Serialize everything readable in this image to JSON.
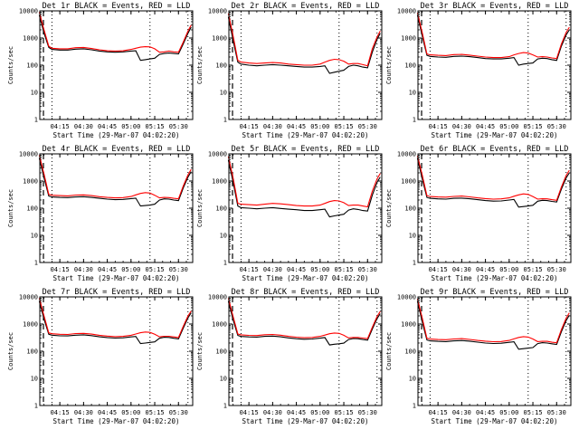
{
  "colors": {
    "events": "#000000",
    "lld": "#ff0000",
    "background": "#ffffff"
  },
  "chart_data": [
    {
      "type": "line",
      "title": "Det 1r BLACK = Events, RED = LLD",
      "xlabel": "Start Time (29-Mar-07 04:02:20)",
      "ylabel": "Counts/sec",
      "x_ticks": [
        "04:15",
        "04:30",
        "04:45",
        "05:00",
        "05:15",
        "05:30"
      ],
      "y_ticks": [
        "1",
        "10",
        "100",
        "1000",
        "10000"
      ],
      "ylim": [
        1,
        10000
      ],
      "yscale": "log",
      "x": [
        "04:02",
        "04:05",
        "04:08",
        "04:10",
        "04:15",
        "04:20",
        "04:25",
        "04:30",
        "04:35",
        "04:40",
        "04:45",
        "04:50",
        "04:55",
        "05:00",
        "05:03",
        "05:06",
        "05:09",
        "05:12",
        "05:15",
        "05:18",
        "05:21",
        "05:24",
        "05:27",
        "05:30",
        "05:33",
        "05:36",
        "05:38"
      ],
      "series": [
        {
          "name": "Events",
          "values": [
            7000,
            1500,
            450,
            380,
            360,
            360,
            390,
            400,
            370,
            330,
            310,
            300,
            310,
            330,
            340,
            150,
            160,
            170,
            180,
            250,
            270,
            280,
            270,
            260,
            600,
            1500,
            2500
          ]
        },
        {
          "name": "LLD",
          "values": [
            9000,
            2000,
            500,
            420,
            400,
            400,
            440,
            450,
            410,
            370,
            340,
            330,
            340,
            380,
            420,
            460,
            480,
            470,
            400,
            300,
            310,
            330,
            310,
            300,
            700,
            1800,
            3000
          ]
        }
      ]
    },
    {
      "type": "line",
      "title": "Det 2r BLACK = Events, RED = LLD",
      "xlabel": "Start Time (29-Mar-07 04:02:20)",
      "ylabel": "Counts/sec",
      "x_ticks": [
        "04:15",
        "04:30",
        "04:45",
        "05:00",
        "05:15",
        "05:30"
      ],
      "y_ticks": [
        "1",
        "10",
        "100",
        "1000",
        "10000"
      ],
      "ylim": [
        1,
        10000
      ],
      "yscale": "log",
      "x": [
        "04:02",
        "04:05",
        "04:08",
        "04:10",
        "04:15",
        "04:20",
        "04:25",
        "04:30",
        "04:35",
        "04:40",
        "04:45",
        "04:50",
        "04:55",
        "05:00",
        "05:03",
        "05:06",
        "05:09",
        "05:12",
        "05:15",
        "05:18",
        "05:21",
        "05:24",
        "05:27",
        "05:30",
        "05:33",
        "05:36",
        "05:38"
      ],
      "series": [
        {
          "name": "Events",
          "values": [
            6000,
            800,
            130,
            110,
            100,
            95,
            100,
            105,
            100,
            95,
            90,
            85,
            85,
            90,
            95,
            50,
            55,
            60,
            65,
            90,
            100,
            95,
            85,
            80,
            300,
            900,
            1500
          ]
        },
        {
          "name": "LLD",
          "values": [
            8000,
            1200,
            150,
            130,
            120,
            115,
            120,
            125,
            120,
            110,
            105,
            100,
            100,
            110,
            130,
            150,
            165,
            160,
            140,
            110,
            115,
            115,
            105,
            95,
            400,
            1100,
            1800
          ]
        }
      ]
    },
    {
      "type": "line",
      "title": "Det 3r BLACK = Events, RED = LLD",
      "xlabel": "Start Time (29-Mar-07 04:02:20)",
      "ylabel": "Counts/sec",
      "x_ticks": [
        "04:15",
        "04:30",
        "04:45",
        "05:00",
        "05:15",
        "05:30"
      ],
      "y_ticks": [
        "1",
        "10",
        "100",
        "1000",
        "10000"
      ],
      "ylim": [
        1,
        10000
      ],
      "yscale": "log",
      "x": [
        "04:02",
        "04:05",
        "04:08",
        "04:10",
        "04:15",
        "04:20",
        "04:25",
        "04:30",
        "04:35",
        "04:40",
        "04:45",
        "04:50",
        "04:55",
        "05:00",
        "05:03",
        "05:06",
        "05:09",
        "05:12",
        "05:15",
        "05:18",
        "05:21",
        "05:24",
        "05:27",
        "05:30",
        "05:33",
        "05:36",
        "05:38"
      ],
      "series": [
        {
          "name": "Events",
          "values": [
            7000,
            1200,
            230,
            210,
            200,
            195,
            210,
            215,
            205,
            190,
            175,
            170,
            170,
            180,
            190,
            100,
            110,
            115,
            120,
            170,
            180,
            175,
            160,
            150,
            500,
            1300,
            2000
          ]
        },
        {
          "name": "LLD",
          "values": [
            8500,
            1600,
            260,
            240,
            230,
            225,
            245,
            250,
            235,
            215,
            200,
            190,
            190,
            205,
            240,
            270,
            290,
            280,
            240,
            200,
            205,
            200,
            185,
            175,
            600,
            1600,
            2500
          ]
        }
      ]
    },
    {
      "type": "line",
      "title": "Det 4r BLACK = Events, RED = LLD",
      "xlabel": "Start Time (29-Mar-07 04:02:20)",
      "ylabel": "Counts/sec",
      "x_ticks": [
        "04:15",
        "04:30",
        "04:45",
        "05:00",
        "05:15",
        "05:30"
      ],
      "y_ticks": [
        "1",
        "10",
        "100",
        "1000",
        "10000"
      ],
      "ylim": [
        1,
        10000
      ],
      "yscale": "log",
      "x": [
        "04:02",
        "04:05",
        "04:08",
        "04:10",
        "04:15",
        "04:20",
        "04:25",
        "04:30",
        "04:35",
        "04:40",
        "04:45",
        "04:50",
        "04:55",
        "05:00",
        "05:03",
        "05:06",
        "05:09",
        "05:12",
        "05:15",
        "05:18",
        "05:21",
        "05:24",
        "05:27",
        "05:30",
        "05:33",
        "05:36",
        "05:38"
      ],
      "series": [
        {
          "name": "Events",
          "values": [
            7000,
            1300,
            280,
            260,
            250,
            245,
            260,
            265,
            250,
            230,
            215,
            205,
            210,
            225,
            235,
            120,
            125,
            130,
            140,
            200,
            220,
            215,
            200,
            190,
            550,
            1400,
            2200
          ]
        },
        {
          "name": "LLD",
          "values": [
            9000,
            1800,
            320,
            300,
            290,
            285,
            305,
            310,
            290,
            265,
            250,
            240,
            245,
            270,
            310,
            350,
            375,
            360,
            300,
            240,
            250,
            245,
            230,
            220,
            650,
            1700,
            2700
          ]
        }
      ]
    },
    {
      "type": "line",
      "title": "Det 5r BLACK = Events, RED = LLD",
      "xlabel": "Start Time (29-Mar-07 04:02:20)",
      "ylabel": "Counts/sec",
      "x_ticks": [
        "04:15",
        "04:30",
        "04:45",
        "05:00",
        "05:15",
        "05:30"
      ],
      "y_ticks": [
        "1",
        "10",
        "100",
        "1000",
        "10000"
      ],
      "ylim": [
        1,
        10000
      ],
      "yscale": "log",
      "x": [
        "04:02",
        "04:05",
        "04:08",
        "04:10",
        "04:15",
        "04:20",
        "04:25",
        "04:30",
        "04:35",
        "04:40",
        "04:45",
        "04:50",
        "04:55",
        "05:00",
        "05:03",
        "05:06",
        "05:09",
        "05:12",
        "05:15",
        "05:18",
        "05:21",
        "05:24",
        "05:27",
        "05:30",
        "05:33",
        "05:36",
        "05:38"
      ],
      "series": [
        {
          "name": "Events",
          "values": [
            6000,
            900,
            120,
            105,
            100,
            95,
            100,
            105,
            98,
            92,
            88,
            82,
            82,
            88,
            92,
            48,
            52,
            56,
            60,
            85,
            95,
            90,
            82,
            78,
            300,
            900,
            1400
          ]
        },
        {
          "name": "LLD",
          "values": [
            8000,
            1300,
            150,
            140,
            135,
            130,
            140,
            150,
            145,
            135,
            125,
            120,
            120,
            130,
            150,
            175,
            190,
            185,
            160,
            125,
            130,
            130,
            120,
            112,
            420,
            1200,
            1900
          ]
        }
      ]
    },
    {
      "type": "line",
      "title": "Det 6r BLACK = Events, RED = LLD",
      "xlabel": "Start Time (29-Mar-07 04:02:20)",
      "ylabel": "Counts/sec",
      "x_ticks": [
        "04:15",
        "04:30",
        "04:45",
        "05:00",
        "05:15",
        "05:30"
      ],
      "y_ticks": [
        "1",
        "10",
        "100",
        "1000",
        "10000"
      ],
      "ylim": [
        1,
        10000
      ],
      "yscale": "log",
      "x": [
        "04:02",
        "04:05",
        "04:08",
        "04:10",
        "04:15",
        "04:20",
        "04:25",
        "04:30",
        "04:35",
        "04:40",
        "04:45",
        "04:50",
        "04:55",
        "05:00",
        "05:03",
        "05:06",
        "05:09",
        "05:12",
        "05:15",
        "05:18",
        "05:21",
        "05:24",
        "05:27",
        "05:30",
        "05:33",
        "05:36",
        "05:38"
      ],
      "series": [
        {
          "name": "Events",
          "values": [
            7000,
            1200,
            250,
            230,
            220,
            215,
            230,
            235,
            222,
            205,
            190,
            182,
            185,
            200,
            210,
            110,
            115,
            120,
            128,
            180,
            195,
            190,
            178,
            168,
            500,
            1300,
            2000
          ]
        },
        {
          "name": "LLD",
          "values": [
            8500,
            1700,
            290,
            270,
            260,
            255,
            272,
            280,
            262,
            240,
            225,
            215,
            220,
            240,
            275,
            310,
            335,
            320,
            270,
            215,
            222,
            220,
            205,
            195,
            600,
            1600,
            2500
          ]
        }
      ]
    },
    {
      "type": "line",
      "title": "Det 7r BLACK = Events, RED = LLD",
      "xlabel": "Start Time (29-Mar-07 04:02:20)",
      "ylabel": "Counts/sec",
      "x_ticks": [
        "04:15",
        "04:30",
        "04:45",
        "05:00",
        "05:15",
        "05:30"
      ],
      "y_ticks": [
        "1",
        "10",
        "100",
        "1000",
        "10000"
      ],
      "ylim": [
        1,
        10000
      ],
      "yscale": "log",
      "x": [
        "04:02",
        "04:05",
        "04:08",
        "04:10",
        "04:15",
        "04:20",
        "04:25",
        "04:30",
        "04:35",
        "04:40",
        "04:45",
        "04:50",
        "04:55",
        "05:00",
        "05:03",
        "05:06",
        "05:09",
        "05:12",
        "05:15",
        "05:18",
        "05:21",
        "05:24",
        "05:27",
        "05:30",
        "05:33",
        "05:36",
        "05:38"
      ],
      "series": [
        {
          "name": "Events",
          "values": [
            7000,
            1500,
            420,
            390,
            370,
            365,
            390,
            400,
            375,
            340,
            318,
            305,
            312,
            335,
            350,
            190,
            200,
            210,
            220,
            300,
            325,
            320,
            300,
            285,
            700,
            1700,
            2600
          ]
        },
        {
          "name": "LLD",
          "values": [
            9000,
            2000,
            470,
            440,
            420,
            415,
            445,
            455,
            425,
            385,
            360,
            345,
            352,
            385,
            430,
            480,
            510,
            495,
            420,
            340,
            355,
            355,
            335,
            318,
            820,
            2000,
            3000
          ]
        }
      ]
    },
    {
      "type": "line",
      "title": "Det 8r BLACK = Events, RED = LLD",
      "xlabel": "Start Time (29-Mar-07 04:02:20)",
      "ylabel": "Counts/sec",
      "x_ticks": [
        "04:15",
        "04:30",
        "04:45",
        "05:00",
        "05:15",
        "05:30"
      ],
      "y_ticks": [
        "1",
        "10",
        "100",
        "1000",
        "10000"
      ],
      "ylim": [
        1,
        10000
      ],
      "yscale": "log",
      "x": [
        "04:02",
        "04:05",
        "04:08",
        "04:10",
        "04:15",
        "04:20",
        "04:25",
        "04:30",
        "04:35",
        "04:40",
        "04:45",
        "04:50",
        "04:55",
        "05:00",
        "05:03",
        "05:06",
        "05:09",
        "05:12",
        "05:15",
        "05:18",
        "05:21",
        "05:24",
        "05:27",
        "05:30",
        "05:33",
        "05:36",
        "05:38"
      ],
      "series": [
        {
          "name": "Events",
          "values": [
            7000,
            1400,
            380,
            350,
            335,
            330,
            352,
            360,
            340,
            308,
            288,
            276,
            282,
            302,
            318,
            170,
            180,
            188,
            198,
            270,
            292,
            288,
            270,
            256,
            650,
            1600,
            2400
          ]
        },
        {
          "name": "LLD",
          "values": [
            9000,
            1900,
            430,
            400,
            382,
            378,
            405,
            415,
            390,
            352,
            328,
            315,
            322,
            352,
            392,
            440,
            468,
            452,
            385,
            310,
            322,
            322,
            305,
            290,
            760,
            1900,
            2900
          ]
        }
      ]
    },
    {
      "type": "line",
      "title": "Det 9r BLACK = Events, RED = LLD",
      "xlabel": "Start Time (29-Mar-07 04:02:20)",
      "ylabel": "Counts/sec",
      "x_ticks": [
        "04:15",
        "04:30",
        "04:45",
        "05:00",
        "05:15",
        "05:30"
      ],
      "y_ticks": [
        "1",
        "10",
        "100",
        "1000",
        "10000"
      ],
      "ylim": [
        1,
        10000
      ],
      "yscale": "log",
      "x": [
        "04:02",
        "04:05",
        "04:08",
        "04:10",
        "04:15",
        "04:20",
        "04:25",
        "04:30",
        "04:35",
        "04:40",
        "04:45",
        "04:50",
        "04:55",
        "05:00",
        "05:03",
        "05:06",
        "05:09",
        "05:12",
        "05:15",
        "05:18",
        "05:21",
        "05:24",
        "05:27",
        "05:30",
        "05:33",
        "05:36",
        "05:38"
      ],
      "series": [
        {
          "name": "Events",
          "values": [
            7000,
            1200,
            260,
            240,
            230,
            225,
            240,
            248,
            234,
            215,
            200,
            192,
            196,
            212,
            222,
            118,
            124,
            130,
            136,
            190,
            205,
            200,
            188,
            178,
            520,
            1350,
            2100
          ]
        },
        {
          "name": "LLD",
          "values": [
            8500,
            1700,
            300,
            280,
            270,
            265,
            282,
            290,
            272,
            250,
            234,
            224,
            228,
            250,
            285,
            322,
            345,
            332,
            282,
            225,
            232,
            230,
            214,
            204,
            620,
            1650,
            2600
          ]
        }
      ]
    }
  ]
}
